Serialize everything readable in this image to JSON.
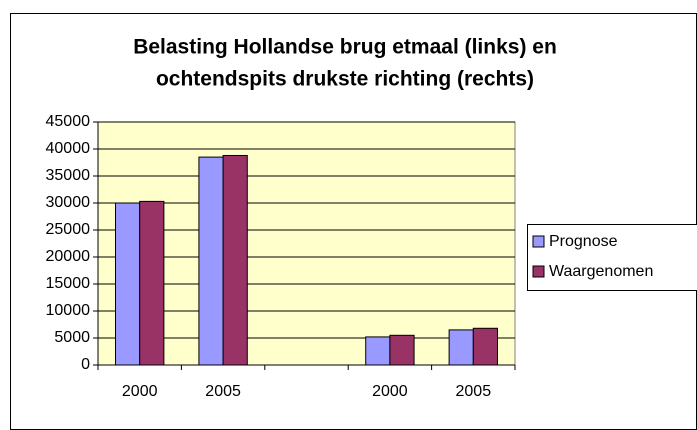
{
  "chart_data": {
    "type": "bar",
    "title": [
      "Belasting Hollandse brug etmaal (links) en",
      "ochtendspits drukste richting (rechts)"
    ],
    "categories": [
      "2000",
      "2005",
      null,
      "2000",
      "2005"
    ],
    "series": [
      {
        "name": "Prognose",
        "color": "#9999ff",
        "values": [
          30000,
          38500,
          null,
          5200,
          6500
        ]
      },
      {
        "name": "Waargenomen",
        "color": "#993366",
        "values": [
          30300,
          38800,
          null,
          5500,
          6800
        ]
      }
    ],
    "ylim": [
      0,
      45000
    ],
    "yticks": [
      0,
      5000,
      10000,
      15000,
      20000,
      25000,
      30000,
      35000,
      40000,
      45000
    ],
    "grid": true,
    "legend": "right"
  }
}
